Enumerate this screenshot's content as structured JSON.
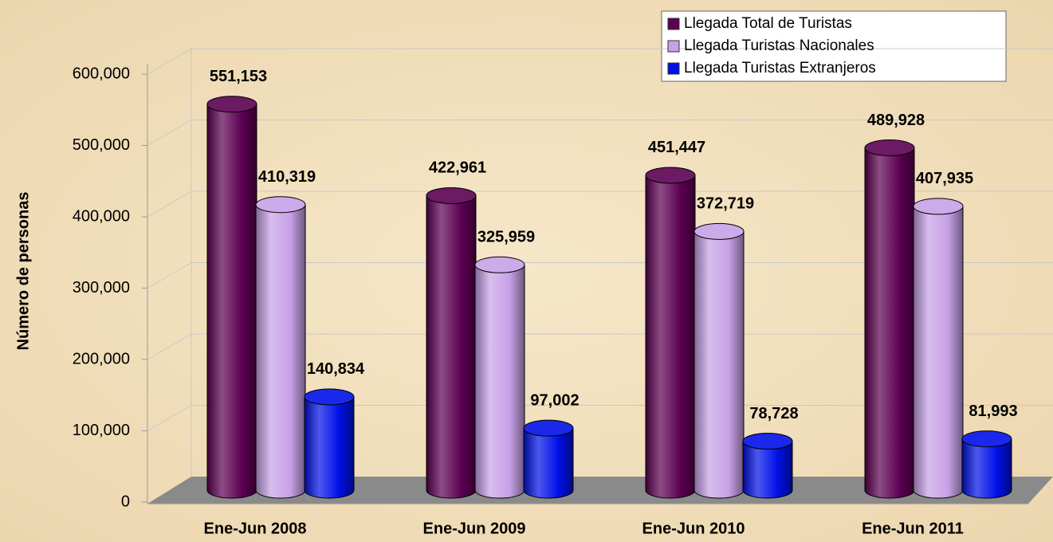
{
  "chart_data": {
    "type": "bar",
    "y_label": "Número de personas",
    "categories": [
      "Ene-Jun 2008",
      "Ene-Jun 2009",
      "Ene-Jun 2010",
      "Ene-Jun 2011"
    ],
    "series": [
      {
        "name": "Llegada Total de Turistas",
        "color": "#5c0052",
        "values": [
          551153,
          422961,
          451447,
          489928
        ],
        "value_labels": [
          "551,153",
          "422,961",
          "451,447",
          "489,928"
        ]
      },
      {
        "name": "Llegada Turistas Nacionales",
        "color": "#c7a0e6",
        "values": [
          410319,
          325959,
          372719,
          407935
        ],
        "value_labels": [
          "410,319",
          "325,959",
          "372,719",
          "407,935"
        ]
      },
      {
        "name": "Llegada Turistas Extranjeros",
        "color": "#0010e8",
        "values": [
          140834,
          97002,
          78728,
          81993
        ],
        "value_labels": [
          "140,834",
          "97,002",
          "78,728",
          "81,993"
        ]
      }
    ],
    "ylim": [
      0,
      600000
    ],
    "yticks": [
      0,
      {
        "value": 100000,
        "label": "100,000"
      },
      {
        "value": 200000,
        "label": "200,000"
      },
      {
        "value": 300000,
        "label": "300,000"
      },
      {
        "value": 400000,
        "label": "400,000"
      },
      {
        "value": 500000,
        "label": "500,000"
      },
      {
        "value": 600000,
        "label": "600,000"
      }
    ],
    "grid": true,
    "legend": "top-right"
  }
}
